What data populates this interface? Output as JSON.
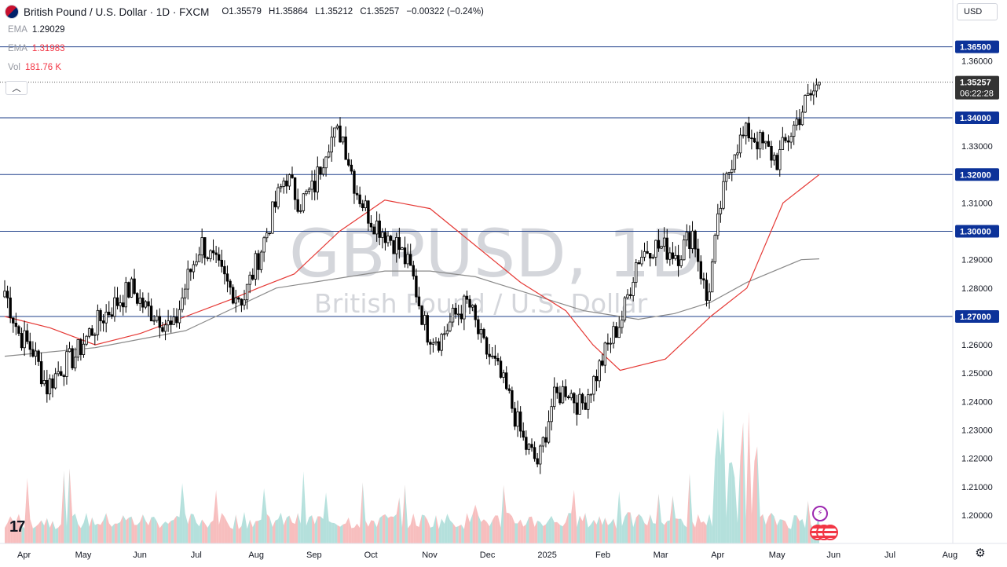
{
  "header": {
    "title": "British Pound / U.S. Dollar · 1D · FXCM",
    "open_label": "O",
    "open_value": "1.35579",
    "high_label": "H",
    "high_value": "1.35864",
    "low_label": "L",
    "low_value": "1.35212",
    "close_label": "C",
    "close_value": "1.35257",
    "change": "−0.00322 (−0.24%)"
  },
  "indicators": [
    {
      "name": "EMA",
      "value": "1.29029",
      "color": "#131722"
    },
    {
      "name": "EMA",
      "value": "1.31983",
      "color": "#f23645"
    },
    {
      "name": "Vol",
      "value": "181.76 K",
      "color": "#f23645"
    }
  ],
  "currency_button": "USD",
  "watermark": {
    "symbol": "GBPUSD, 1D",
    "description": "British Pound / U.S. Dollar"
  },
  "colors": {
    "up": "#000000",
    "down": "#000000",
    "level_line": "#1e3f8a",
    "level_label_bg": "#0c3299",
    "ema_red": "#e53935",
    "ema_gray": "#8a8a8a",
    "vol_up": "#a7dbd6",
    "vol_down": "#f6b3b3",
    "price_label_bg": "#333333"
  },
  "icons": {
    "tv_logo": "tradingview-logo",
    "settings": "gear-icon",
    "collapse": "chevron-up-icon",
    "news": "lightning-icon",
    "country": "us-flag-icon"
  },
  "tv_logo_text": "17",
  "chart_data": {
    "type": "candlestick",
    "symbol": "GBPUSD",
    "timeframe": "1D",
    "y_range": [
      1.195,
      1.3685
    ],
    "y_ticks": [
      "1.36000",
      "1.35000",
      "1.34000",
      "1.33000",
      "1.32000",
      "1.31000",
      "1.30000",
      "1.29000",
      "1.28000",
      "1.27000",
      "1.26000",
      "1.25000",
      "1.24000",
      "1.23000",
      "1.22000",
      "1.21000",
      "1.20000"
    ],
    "x_ticks": [
      "Apr",
      "May",
      "Jun",
      "Jul",
      "Aug",
      "Sep",
      "Oct",
      "Nov",
      "Dec",
      "2025",
      "Feb",
      "Mar",
      "Apr",
      "May",
      "Jun",
      "Jul",
      "Aug"
    ],
    "horizontal_levels": [
      "1.36500",
      "1.34000",
      "1.32000",
      "1.30000",
      "1.27000"
    ],
    "last_price": "1.35257",
    "countdown": "06:22:28",
    "price_path": [
      [
        "Apr",
        1.279
      ],
      [
        "Apr",
        1.264
      ],
      [
        "Apr",
        1.258
      ],
      [
        "Apr",
        1.245
      ],
      [
        "May",
        1.252
      ],
      [
        "May",
        1.256
      ],
      [
        "May",
        1.264
      ],
      [
        "May",
        1.27
      ],
      [
        "Jun",
        1.275
      ],
      [
        "Jun",
        1.28
      ],
      [
        "Jun",
        1.273
      ],
      [
        "Jun",
        1.27
      ],
      [
        "Jul",
        1.265
      ],
      [
        "Jul",
        1.283
      ],
      [
        "Jul",
        1.296
      ],
      [
        "Jul",
        1.288
      ],
      [
        "Aug",
        1.28
      ],
      [
        "Aug",
        1.276
      ],
      [
        "Aug",
        1.29
      ],
      [
        "Aug",
        1.305
      ],
      [
        "Sep",
        1.32
      ],
      [
        "Sep",
        1.31
      ],
      [
        "Sep",
        1.315
      ],
      [
        "Sep",
        1.332
      ],
      [
        "Oct",
        1.335
      ],
      [
        "Oct",
        1.315
      ],
      [
        "Oct",
        1.305
      ],
      [
        "Oct",
        1.3
      ],
      [
        "Nov",
        1.295
      ],
      [
        "Nov",
        1.285
      ],
      [
        "Nov",
        1.265
      ],
      [
        "Nov",
        1.262
      ],
      [
        "Dec",
        1.27
      ],
      [
        "Dec",
        1.275
      ],
      [
        "Dec",
        1.26
      ],
      [
        "Dec",
        1.252
      ],
      [
        "2025",
        1.24
      ],
      [
        "2025",
        1.225
      ],
      [
        "2025",
        1.218
      ],
      [
        "2025",
        1.24
      ],
      [
        "Feb",
        1.245
      ],
      [
        "Feb",
        1.238
      ],
      [
        "Feb",
        1.248
      ],
      [
        "Feb",
        1.26
      ],
      [
        "Mar",
        1.27
      ],
      [
        "Mar",
        1.29
      ],
      [
        "Mar",
        1.295
      ],
      [
        "Mar",
        1.294
      ],
      [
        "Apr",
        1.292
      ],
      [
        "Apr",
        1.3
      ],
      [
        "Apr",
        1.275
      ],
      [
        "Apr",
        1.31
      ],
      [
        "May",
        1.33
      ],
      [
        "May",
        1.335
      ],
      [
        "May",
        1.33
      ],
      [
        "May",
        1.325
      ],
      [
        "May",
        1.335
      ],
      [
        "May",
        1.345
      ],
      [
        "Jun",
        1.352
      ]
    ],
    "ema_red_path": [
      [
        0,
        1.27
      ],
      [
        0.05,
        1.266
      ],
      [
        0.1,
        1.26
      ],
      [
        0.15,
        1.264
      ],
      [
        0.2,
        1.27
      ],
      [
        0.25,
        1.276
      ],
      [
        0.28,
        1.28
      ],
      [
        0.32,
        1.285
      ],
      [
        0.37,
        1.3
      ],
      [
        0.42,
        1.311
      ],
      [
        0.47,
        1.308
      ],
      [
        0.52,
        1.295
      ],
      [
        0.57,
        1.282
      ],
      [
        0.62,
        1.272
      ],
      [
        0.65,
        1.26
      ],
      [
        0.68,
        1.251
      ],
      [
        0.73,
        1.255
      ],
      [
        0.78,
        1.27
      ],
      [
        0.82,
        1.28
      ],
      [
        0.86,
        1.31
      ],
      [
        0.9,
        1.32
      ]
    ],
    "ema_gray_path": [
      [
        0,
        1.256
      ],
      [
        0.1,
        1.259
      ],
      [
        0.2,
        1.265
      ],
      [
        0.3,
        1.28
      ],
      [
        0.36,
        1.283
      ],
      [
        0.42,
        1.286
      ],
      [
        0.47,
        1.286
      ],
      [
        0.52,
        1.284
      ],
      [
        0.58,
        1.278
      ],
      [
        0.64,
        1.272
      ],
      [
        0.7,
        1.269
      ],
      [
        0.74,
        1.271
      ],
      [
        0.78,
        1.275
      ],
      [
        0.82,
        1.282
      ],
      [
        0.88,
        1.29
      ],
      [
        0.9,
        1.2903
      ]
    ],
    "volume_unit": "K"
  }
}
